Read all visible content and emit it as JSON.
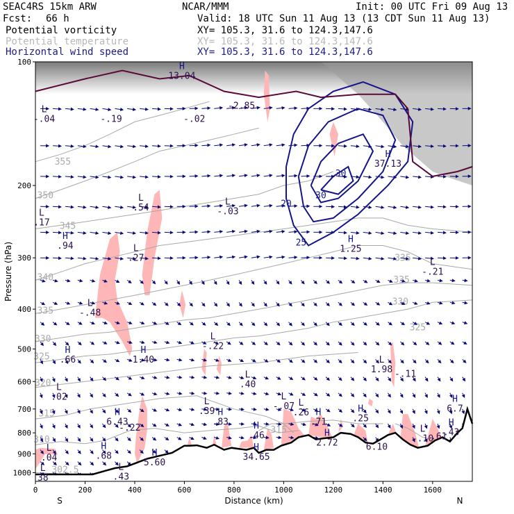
{
  "header": {
    "model": "SEAC4RS 15km ARW",
    "org": "NCAR/MMM",
    "init": "Init: 00 UTC Fri 09 Aug 13",
    "fcst_label": "Fcst:",
    "fcst_value": "66 h",
    "valid": "Valid: 18 UTC Sun 11 Aug 13 (13 CDT Sun 11 Aug 13)"
  },
  "fields": [
    {
      "name": "Potential vorticity",
      "xy": "XY= 105.3, 31.6 to 124.3,147.6",
      "color": "#000000"
    },
    {
      "name": "Potential temperature",
      "xy": "XY= 105.3, 31.6 to 124.3,147.6",
      "color": "#b8b8b8"
    },
    {
      "name": "Horizontal wind speed",
      "xy": "XY= 105.3, 31.6 to 124.3,147.6",
      "color": "#1a1a8c"
    }
  ],
  "colors": {
    "pv_shade": "#ffb6b6",
    "theta": "#a8a8a8",
    "wind": "#0a0a78",
    "terrain": "#000000",
    "tropopause": "#5a0a3a",
    "hl_label": "#2a1050"
  },
  "chart_data": {
    "type": "cross-section",
    "xlabel": "Distance (km)",
    "ylabel": "Pressure (hPa)",
    "xlim": [
      0,
      1760
    ],
    "ylim": [
      1050,
      100
    ],
    "y_scale": "log-pressure",
    "x_ticks": [
      "0",
      "200",
      "400",
      "600",
      "800",
      "1000",
      "1200",
      "1400",
      "1600"
    ],
    "x_tick_values": [
      0,
      200,
      400,
      600,
      800,
      1000,
      1200,
      1400,
      1600
    ],
    "y_ticks": [
      "100",
      "200",
      "300",
      "400",
      "500",
      "600",
      "700",
      "800",
      "900",
      "1000"
    ],
    "y_tick_values": [
      100,
      200,
      300,
      400,
      500,
      600,
      700,
      800,
      900,
      1000
    ],
    "end_labels": {
      "left": "S",
      "right": "N"
    },
    "theta_contours": [
      {
        "label": "302.5",
        "x": 120,
        "p": 1000
      },
      {
        "label": "310",
        "x": 25,
        "p": 845
      },
      {
        "label": "315",
        "x": 45,
        "p": 730
      },
      {
        "label": "320",
        "x": 30,
        "p": 615
      },
      {
        "label": "325",
        "x": 25,
        "p": 530
      },
      {
        "label": "330",
        "x": 30,
        "p": 480
      },
      {
        "label": "335",
        "x": 40,
        "p": 410
      },
      {
        "label": "340",
        "x": 40,
        "p": 340
      },
      {
        "label": "345",
        "x": 130,
        "p": 255
      },
      {
        "label": "350",
        "x": 40,
        "p": 215
      },
      {
        "label": "355",
        "x": 110,
        "p": 178
      },
      {
        "label": "335",
        "x": 1475,
        "p": 345
      },
      {
        "label": "330",
        "x": 1470,
        "p": 390
      },
      {
        "label": "325",
        "x": 1540,
        "p": 450
      },
      {
        "label": "335",
        "x": 1480,
        "p": 305
      },
      {
        "label": "315",
        "x": 980,
        "p": 800
      }
    ],
    "wind_speed_contours": [
      {
        "label": "20",
        "x": 1010,
        "p": 225
      },
      {
        "label": "25",
        "x": 1070,
        "p": 280
      },
      {
        "label": "30",
        "x": 1150,
        "p": 215
      },
      {
        "label": "30",
        "x": 1230,
        "p": 190
      }
    ],
    "pv_extrema": [
      {
        "type": "L",
        "value": "-.04",
        "x": 35,
        "p": 140
      },
      {
        "type": "",
        "value": "-.19",
        "x": 305,
        "p": 140
      },
      {
        "type": "",
        "value": "-.02",
        "x": 640,
        "p": 140
      },
      {
        "type": "",
        "value": "-2.85",
        "x": 830,
        "p": 130
      },
      {
        "type": "H",
        "value": "13.04",
        "x": 590,
        "p": 110
      },
      {
        "type": "L",
        "value": ".17",
        "x": 25,
        "p": 250
      },
      {
        "type": "H",
        "value": ".94",
        "x": 120,
        "p": 285
      },
      {
        "type": "L",
        "value": ".54",
        "x": 425,
        "p": 230
      },
      {
        "type": "L",
        "value": "-.03",
        "x": 775,
        "p": 235
      },
      {
        "type": "L",
        "value": ".27",
        "x": 405,
        "p": 305
      },
      {
        "type": "L",
        "value": "-.48",
        "x": 220,
        "p": 415
      },
      {
        "type": "H",
        "value": "1.25",
        "x": 1270,
        "p": 290
      },
      {
        "type": "L",
        "value": "-.21",
        "x": 1600,
        "p": 330
      },
      {
        "type": "H",
        "value": "37.13",
        "x": 1420,
        "p": 180
      },
      {
        "type": "L",
        "value": "-.22",
        "x": 715,
        "p": 500
      },
      {
        "type": "H",
        "value": ".66",
        "x": 130,
        "p": 540
      },
      {
        "type": "H",
        "value": "1.40",
        "x": 435,
        "p": 540
      },
      {
        "type": "L",
        "value": "1.98",
        "x": 1395,
        "p": 570
      },
      {
        "type": "",
        "value": "-.11",
        "x": 1490,
        "p": 585
      },
      {
        "type": "L",
        "value": ".40",
        "x": 855,
        "p": 620
      },
      {
        "type": "L",
        "value": ".02",
        "x": 95,
        "p": 665
      },
      {
        "type": "L",
        "value": "-.07",
        "x": 1000,
        "p": 700
      },
      {
        "type": "L",
        "value": ".26",
        "x": 1070,
        "p": 725
      },
      {
        "type": "L",
        "value": ".39",
        "x": 690,
        "p": 720
      },
      {
        "type": "H",
        "value": "6.43",
        "x": 330,
        "p": 765
      },
      {
        "type": "",
        "value": "-.22",
        "x": 380,
        "p": 790
      },
      {
        "type": "H",
        "value": ".83",
        "x": 745,
        "p": 765
      },
      {
        "type": "H",
        "value": ".71",
        "x": 1140,
        "p": 765
      },
      {
        "type": "H",
        "value": ".25",
        "x": 1310,
        "p": 750
      },
      {
        "type": "H",
        "value": "6.7",
        "x": 1690,
        "p": 710
      },
      {
        "type": "H",
        "value": ".43",
        "x": 1675,
        "p": 810
      },
      {
        "type": "H",
        "value": ".46",
        "x": 890,
        "p": 825
      },
      {
        "type": "L",
        "value": "-.10",
        "x": 1560,
        "p": 840
      },
      {
        "type": "",
        "value": ".61",
        "x": 1625,
        "p": 830
      },
      {
        "type": "H",
        "value": "2.72",
        "x": 1175,
        "p": 860
      },
      {
        "type": "",
        "value": "6.10",
        "x": 1375,
        "p": 880
      },
      {
        "type": "H",
        "value": ".68",
        "x": 275,
        "p": 925
      },
      {
        "type": "H",
        "value": "5.60",
        "x": 480,
        "p": 960
      },
      {
        "type": "L",
        "value": ".04",
        "x": 55,
        "p": 935
      },
      {
        "type": "H",
        "value": "34.65",
        "x": 890,
        "p": 930
      },
      {
        "type": "L",
        "value": "38",
        "x": 30,
        "p": 1045
      },
      {
        "type": "L",
        "value": ".43",
        "x": 345,
        "p": 1040
      }
    ]
  }
}
